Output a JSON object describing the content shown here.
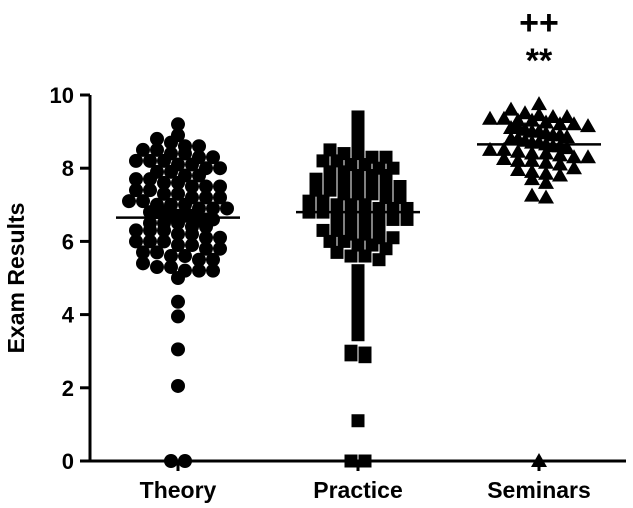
{
  "chart_data": {
    "type": "scatter",
    "title": "",
    "xlabel": "",
    "ylabel": "Exam Results",
    "ylim": [
      0,
      10
    ],
    "yticks": [
      "0",
      "2",
      "4",
      "6",
      "8",
      "10"
    ],
    "grid": false,
    "legend": "none",
    "categories": [
      "Theory",
      "Practice",
      "Seminars"
    ],
    "annotations": [
      {
        "category": "Seminars",
        "lines": [
          "++",
          "**"
        ]
      }
    ],
    "series": [
      {
        "marker": "circle",
        "mean": 6.65,
        "values": [
          9.2,
          8.9,
          8.8,
          8.7,
          8.6,
          8.6,
          8.5,
          8.5,
          8.4,
          8.4,
          8.3,
          8.3,
          8.2,
          8.2,
          8.2,
          8.1,
          8.1,
          8.0,
          8.0,
          7.9,
          7.9,
          7.8,
          7.8,
          7.7,
          7.7,
          7.6,
          7.6,
          7.5,
          7.5,
          7.5,
          7.4,
          7.4,
          7.3,
          7.3,
          7.2,
          7.2,
          7.2,
          7.1,
          7.1,
          7.0,
          7.0,
          7.0,
          6.9,
          6.9,
          6.9,
          6.8,
          6.8,
          6.8,
          6.7,
          6.7,
          6.7,
          6.7,
          6.6,
          6.6,
          6.6,
          6.5,
          6.5,
          6.5,
          6.4,
          6.4,
          6.3,
          6.3,
          6.3,
          6.2,
          6.2,
          6.1,
          6.1,
          6.0,
          6.0,
          6.0,
          5.9,
          5.9,
          5.8,
          5.8,
          5.7,
          5.7,
          5.6,
          5.6,
          5.5,
          5.5,
          5.4,
          5.3,
          5.3,
          5.2,
          5.2,
          5.2,
          5.0,
          4.35,
          3.95,
          3.05,
          2.05,
          0,
          0
        ]
      },
      {
        "marker": "square",
        "mean": 6.8,
        "values": [
          9.4,
          9.2,
          8.9,
          8.6,
          8.5,
          8.4,
          8.4,
          8.3,
          8.3,
          8.2,
          8.2,
          8.1,
          8.1,
          8.0,
          8.0,
          7.9,
          7.9,
          7.8,
          7.8,
          7.8,
          7.7,
          7.7,
          7.6,
          7.6,
          7.5,
          7.5,
          7.5,
          7.4,
          7.4,
          7.3,
          7.3,
          7.3,
          7.2,
          7.2,
          7.1,
          7.1,
          7.0,
          7.0,
          7.0,
          6.9,
          6.9,
          6.9,
          6.8,
          6.8,
          6.8,
          6.7,
          6.7,
          6.6,
          6.6,
          6.6,
          6.5,
          6.5,
          6.4,
          6.4,
          6.3,
          6.3,
          6.2,
          6.2,
          6.1,
          6.1,
          6.0,
          6.0,
          5.9,
          5.9,
          5.8,
          5.7,
          5.6,
          5.6,
          5.5,
          5.2,
          5.0,
          4.8,
          4.6,
          4.25,
          4.0,
          3.7,
          3.45,
          3.0,
          2.95,
          2.9,
          2.85,
          1.1,
          0,
          0
        ]
      },
      {
        "marker": "triangle",
        "mean": 8.65,
        "values": [
          9.75,
          9.6,
          9.5,
          9.45,
          9.4,
          9.4,
          9.35,
          9.35,
          9.3,
          9.3,
          9.25,
          9.2,
          9.2,
          9.15,
          9.1,
          9.1,
          9.05,
          9.0,
          9.0,
          8.95,
          8.9,
          8.9,
          8.85,
          8.8,
          8.8,
          8.75,
          8.7,
          8.7,
          8.65,
          8.6,
          8.6,
          8.55,
          8.5,
          8.5,
          8.45,
          8.4,
          8.4,
          8.35,
          8.3,
          8.3,
          8.25,
          8.2,
          8.2,
          8.15,
          8.1,
          8.0,
          7.95,
          7.9,
          7.85,
          7.8,
          7.7,
          7.6,
          7.25,
          7.2,
          0
        ]
      }
    ]
  }
}
